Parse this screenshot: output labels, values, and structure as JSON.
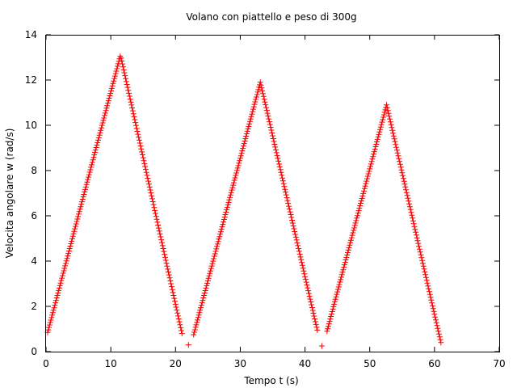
{
  "chart_data": {
    "type": "scatter",
    "title": "Volano con piattello e peso di 300g",
    "xlabel": "Tempo t (s)",
    "ylabel": "Velocita angolare w (rad/s)",
    "xlim": [
      0,
      70
    ],
    "ylim": [
      0,
      14
    ],
    "x_ticks": [
      0,
      10,
      20,
      30,
      40,
      50,
      60,
      70
    ],
    "y_ticks": [
      0,
      2,
      4,
      6,
      8,
      10,
      12,
      14
    ],
    "x_tick_labels": [
      "0",
      "10",
      "20",
      "30",
      "40",
      "50",
      "60",
      "70"
    ],
    "y_tick_labels": [
      "0",
      "2",
      "4",
      "6",
      "8",
      "10",
      "12",
      "14"
    ],
    "grid": false,
    "marker": "plus",
    "marker_color": "#ff0000",
    "segments": [
      {
        "x_start": 0.25,
        "x_peak": 11.5,
        "x_end": 21.0,
        "y_start": 0.85,
        "y_peak": 13.1,
        "y_end": 0.8
      },
      {
        "x_start": 22.8,
        "x_peak": 33.1,
        "x_end": 41.9,
        "y_start": 0.75,
        "y_peak": 11.9,
        "y_end": 0.95
      },
      {
        "x_start": 43.4,
        "x_peak": 52.6,
        "x_end": 61.0,
        "y_start": 0.9,
        "y_peak": 10.9,
        "y_end": 0.4
      }
    ],
    "extra_points": [
      {
        "x": 22.0,
        "y": 0.3
      },
      {
        "x": 42.6,
        "y": 0.25
      }
    ]
  }
}
